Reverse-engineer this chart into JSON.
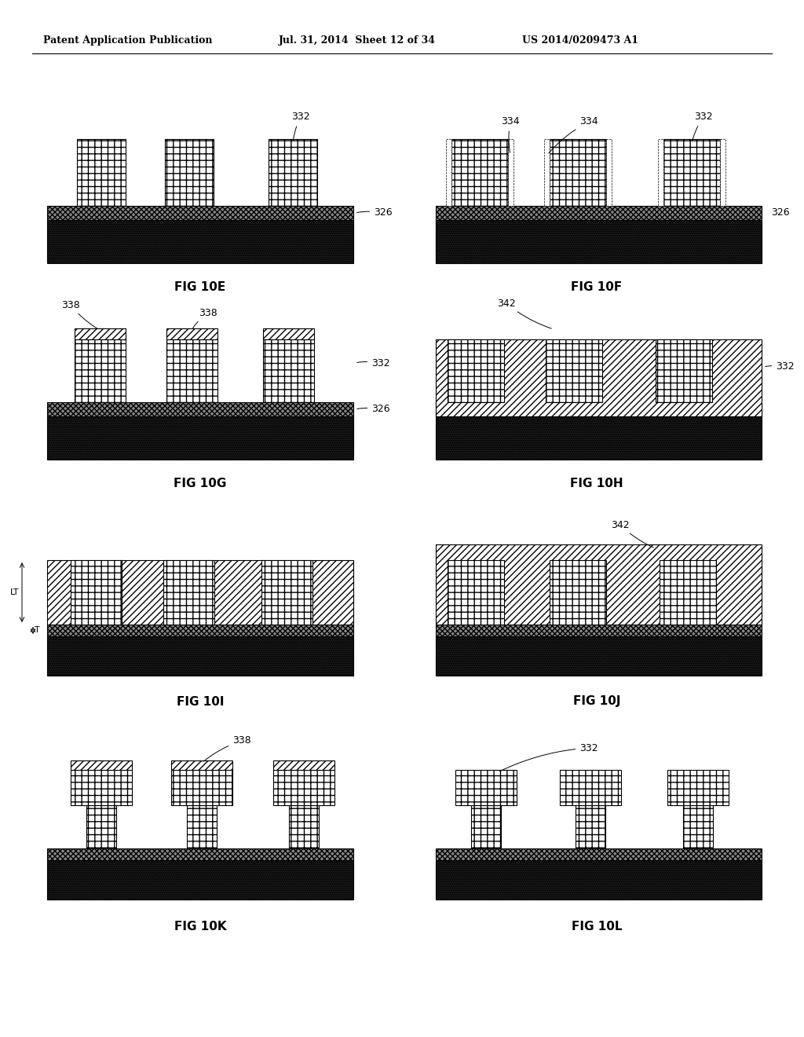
{
  "bg_color": "#ffffff",
  "header_left": "Patent Application Publication",
  "header_mid": "Jul. 31, 2014  Sheet 12 of 34",
  "header_right": "US 2014/0209473 A1",
  "line_color": "#000000",
  "substrate_color": "#2a2a2a",
  "layer326_color": "#bbbbbb",
  "block332_color": "#ffffff",
  "diag_color": "#ffffff",
  "fig_label_fontsize": 11,
  "annot_fontsize": 9,
  "header_fontsize": 9
}
